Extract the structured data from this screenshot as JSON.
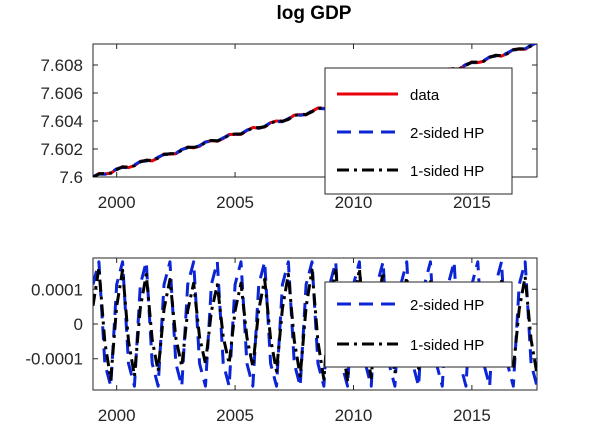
{
  "chart_data": [
    {
      "type": "line",
      "title": "log GDP",
      "xlabel": "",
      "ylabel": "",
      "xlim": [
        1999,
        2017.75
      ],
      "ylim": [
        7.6,
        7.6095
      ],
      "xticks": [
        2000,
        2005,
        2010,
        2015
      ],
      "xtick_labels": [
        "2000",
        "2005",
        "2010",
        "2015"
      ],
      "yticks": [
        7.6,
        7.602,
        7.604,
        7.606,
        7.608
      ],
      "ytick_labels": [
        "7.6",
        "7.602",
        "7.604",
        "7.606",
        "7.608"
      ],
      "grid": false,
      "legend_position": "right",
      "x_range": [
        1999,
        2017.75
      ],
      "step": 0.25,
      "series": [
        {
          "name": "data",
          "color": "#e8000b",
          "style": "solid",
          "start": 7.6,
          "end": 7.6095
        },
        {
          "name": "2-sided HP",
          "color": "#0b24d6",
          "style": "dashed",
          "start": 7.6,
          "end": 7.6095
        },
        {
          "name": "1-sided HP",
          "color": "#000000",
          "style": "dashdot",
          "start": 7.6,
          "end": 7.6095
        }
      ]
    },
    {
      "type": "line",
      "title": "",
      "xlabel": "",
      "ylabel": "",
      "xlim": [
        1999,
        2017.75
      ],
      "ylim": [
        -0.00019,
        0.00019
      ],
      "xticks": [
        2000,
        2005,
        2010,
        2015
      ],
      "xtick_labels": [
        "2000",
        "2005",
        "2010",
        "2015"
      ],
      "yticks": [
        -0.0001,
        0,
        0.0001
      ],
      "ytick_labels": [
        "-0.0001",
        "0",
        "0.0001"
      ],
      "grid": false,
      "legend_position": "right",
      "x_range": [
        1999,
        2017.75
      ],
      "step": 0.25,
      "series": [
        {
          "name": "2-sided HP",
          "color": "#0b24d6",
          "style": "dashed",
          "cycle_years": 1.0,
          "amplitude": 0.00019
        },
        {
          "name": "1-sided HP",
          "color": "#000000",
          "style": "dashdot",
          "cycle_years": 1.0,
          "amplitude": 0.00017
        }
      ]
    }
  ]
}
